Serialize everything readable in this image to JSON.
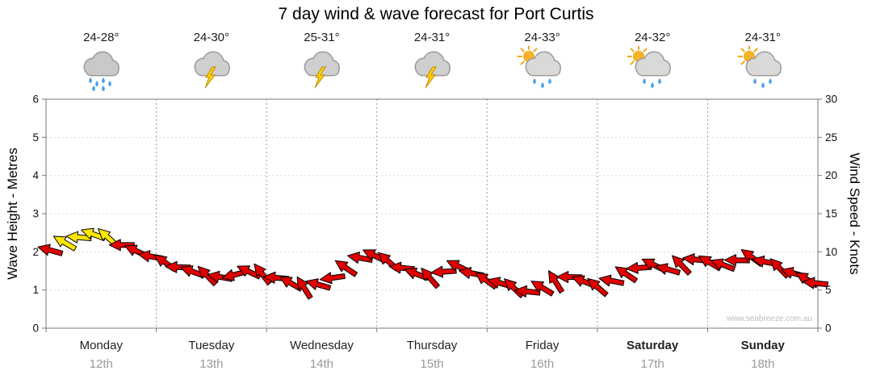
{
  "title": "7 day wind & wave forecast for Port Curtis",
  "watermark": "www.seabreeze.com.au",
  "axes": {
    "left_title": "Wave Height - Metres",
    "right_title": "Wind Speed - Knots",
    "left_ticks": [
      0,
      1,
      2,
      3,
      4,
      5,
      6
    ],
    "right_ticks": [
      0,
      5,
      10,
      15,
      20,
      25,
      30
    ]
  },
  "days": [
    {
      "name": "Monday",
      "date": "12th",
      "temp": "24-28°",
      "icon": "rain",
      "bold": false
    },
    {
      "name": "Tuesday",
      "date": "13th",
      "temp": "24-30°",
      "icon": "storm",
      "bold": false
    },
    {
      "name": "Wednesday",
      "date": "14th",
      "temp": "25-31°",
      "icon": "storm",
      "bold": false
    },
    {
      "name": "Thursday",
      "date": "15th",
      "temp": "24-31°",
      "icon": "storm",
      "bold": false
    },
    {
      "name": "Friday",
      "date": "16th",
      "temp": "24-33°",
      "icon": "sun-shower",
      "bold": false
    },
    {
      "name": "Saturday",
      "date": "17th",
      "temp": "24-32°",
      "icon": "sun-shower",
      "bold": true
    },
    {
      "name": "Sunday",
      "date": "18th",
      "temp": "24-31°",
      "icon": "sun-shower",
      "bold": true
    }
  ],
  "colors": {
    "barb_red": "#e10000",
    "barb_yellow": "#ffe600",
    "barb_outline": "#000000",
    "grid_day": "#9a9a9a",
    "grid_faint": "#dcdcdc",
    "axis": "#7a7a7a",
    "tick_text": "#111111",
    "date_gray": "#9a9a9a",
    "rain_blue": "#4aa0e8",
    "bolt_yellow": "#ffd400",
    "bolt_edge": "#c08a00",
    "cloud_gray": "#d2d2d2",
    "cloud_edge": "#9b9b9b",
    "sun_yellow": "#f6b32a",
    "sun_edge": "#f0a818"
  },
  "chart_data": {
    "type": "scatter",
    "subtype": "wind-barb-forecast",
    "title": "7 day wind & wave forecast for Port Curtis",
    "categories": [
      "Monday",
      "Tuesday",
      "Wednesday",
      "Thursday",
      "Friday",
      "Saturday",
      "Sunday"
    ],
    "dates": [
      "12th",
      "13th",
      "14th",
      "15th",
      "16th",
      "17th",
      "18th"
    ],
    "temperatures": [
      "24-28°",
      "24-30°",
      "25-31°",
      "24-31°",
      "24-33°",
      "24-32°",
      "24-31°"
    ],
    "ylabel_left": "Wave Height - Metres",
    "ylabel_right": "Wind Speed - Knots",
    "ylim_left": [
      0,
      6
    ],
    "ylim_right": [
      0,
      30
    ],
    "grid": true,
    "legend": false,
    "barb_columns": [
      "day_fraction_x",
      "wind_speed_knots",
      "direction_deg",
      "color"
    ],
    "barbs": [
      [
        0.04,
        10.2,
        195,
        "red"
      ],
      [
        0.17,
        11.2,
        210,
        "yellow"
      ],
      [
        0.3,
        11.9,
        185,
        "yellow"
      ],
      [
        0.43,
        12.3,
        200,
        "yellow"
      ],
      [
        0.56,
        11.9,
        222,
        "yellow"
      ],
      [
        0.69,
        10.9,
        180,
        "red"
      ],
      [
        0.82,
        10.1,
        205,
        "red"
      ],
      [
        0.95,
        9.4,
        190,
        "red"
      ],
      [
        1.08,
        8.6,
        215,
        "red"
      ],
      [
        1.2,
        8.0,
        182,
        "red"
      ],
      [
        1.33,
        7.4,
        200,
        "red"
      ],
      [
        1.46,
        6.9,
        226,
        "red"
      ],
      [
        1.58,
        6.7,
        190,
        "red"
      ],
      [
        1.71,
        7.0,
        165,
        "red"
      ],
      [
        1.84,
        7.4,
        205,
        "red"
      ],
      [
        1.96,
        7.1,
        232,
        "red"
      ],
      [
        2.09,
        6.6,
        185,
        "red"
      ],
      [
        2.22,
        5.9,
        210,
        "red"
      ],
      [
        2.34,
        5.3,
        238,
        "red"
      ],
      [
        2.47,
        5.7,
        196,
        "red"
      ],
      [
        2.6,
        6.6,
        172,
        "red"
      ],
      [
        2.72,
        7.9,
        214,
        "red"
      ],
      [
        2.85,
        9.2,
        190,
        "red"
      ],
      [
        2.98,
        9.5,
        206,
        "red"
      ],
      [
        3.1,
        8.8,
        221,
        "red"
      ],
      [
        3.23,
        7.9,
        186,
        "red"
      ],
      [
        3.36,
        7.1,
        201,
        "red"
      ],
      [
        3.48,
        6.6,
        229,
        "red"
      ],
      [
        3.61,
        7.4,
        176,
        "red"
      ],
      [
        3.74,
        8.1,
        206,
        "red"
      ],
      [
        3.86,
        7.2,
        191,
        "red"
      ],
      [
        3.99,
        6.3,
        216,
        "red"
      ],
      [
        4.12,
        5.9,
        196,
        "red"
      ],
      [
        4.24,
        5.3,
        224,
        "red"
      ],
      [
        4.37,
        4.8,
        186,
        "red"
      ],
      [
        4.5,
        5.3,
        211,
        "red"
      ],
      [
        4.62,
        6.1,
        238,
        "red"
      ],
      [
        4.75,
        6.7,
        181,
        "red"
      ],
      [
        4.88,
        6.1,
        201,
        "red"
      ],
      [
        5.0,
        5.4,
        221,
        "red"
      ],
      [
        5.13,
        6.2,
        191,
        "red"
      ],
      [
        5.26,
        7.1,
        214,
        "red"
      ],
      [
        5.38,
        7.9,
        176,
        "red"
      ],
      [
        5.51,
        8.3,
        206,
        "red"
      ],
      [
        5.64,
        7.7,
        196,
        "red"
      ],
      [
        5.76,
        8.3,
        226,
        "red"
      ],
      [
        5.89,
        9.0,
        186,
        "red"
      ],
      [
        6.02,
        8.6,
        211,
        "red"
      ],
      [
        6.14,
        8.3,
        201,
        "red"
      ],
      [
        6.27,
        8.9,
        181,
        "red"
      ],
      [
        6.4,
        9.3,
        216,
        "red"
      ],
      [
        6.52,
        8.7,
        191,
        "red"
      ],
      [
        6.65,
        7.9,
        226,
        "red"
      ],
      [
        6.78,
        7.2,
        196,
        "red"
      ],
      [
        6.9,
        6.4,
        211,
        "red"
      ],
      [
        6.98,
        5.9,
        186,
        "red"
      ]
    ]
  }
}
